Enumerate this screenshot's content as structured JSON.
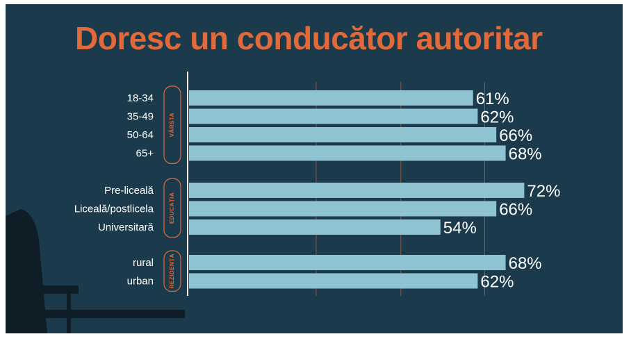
{
  "chart_data": {
    "type": "bar",
    "orientation": "horizontal",
    "title": "Doresc un conducător autoritar",
    "groups": [
      {
        "name": "VÂRSTA",
        "categories": [
          "18-34",
          "35-49",
          "50-64",
          "65+"
        ],
        "values": [
          61,
          62,
          66,
          68
        ]
      },
      {
        "name": "EDUCAȚIA",
        "categories": [
          "Pre-liceală",
          "Liceală/postlicela",
          "Universitară"
        ],
        "values": [
          72,
          66,
          54
        ]
      },
      {
        "name": "REZIDENȚA",
        "categories": [
          "rural",
          "urban"
        ],
        "values": [
          68,
          62
        ]
      }
    ],
    "value_suffix": "%",
    "xlim": [
      0,
      100
    ],
    "grid": true,
    "colors": {
      "bar": "#8fc3d1",
      "background": "#1b3a4b",
      "accent": "#e26a3a",
      "text": "#ffffff",
      "grid": "#8a5a48"
    }
  }
}
